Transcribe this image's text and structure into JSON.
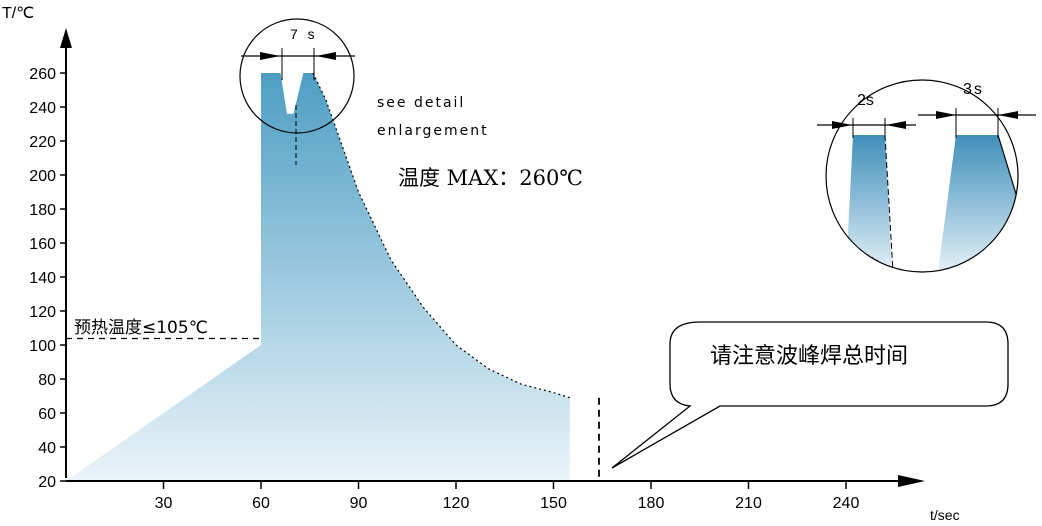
{
  "chart_data": {
    "type": "area",
    "ylabel": "T/℃",
    "xlabel": "t/sec",
    "xlim": [
      0,
      270
    ],
    "ylim": [
      20,
      280
    ],
    "xticks": [
      30,
      60,
      90,
      120,
      150,
      180,
      210,
      240
    ],
    "yticks": [
      20,
      40,
      60,
      80,
      100,
      120,
      140,
      160,
      180,
      200,
      220,
      240,
      260
    ],
    "profile": {
      "x": [
        0,
        60,
        60,
        66,
        68,
        70,
        73,
        76,
        80,
        90,
        100,
        110,
        120,
        130,
        140,
        150,
        155,
        155
      ],
      "y": [
        20,
        100,
        260,
        260,
        236,
        236,
        260,
        260,
        244,
        190,
        150,
        122,
        100,
        86,
        77,
        72,
        69,
        20
      ]
    },
    "peak_window_label": "7 s",
    "detail_windows": [
      {
        "label": "2s"
      },
      {
        "label": "3s"
      }
    ],
    "annotations": {
      "see_detail": "see detail",
      "enlargement": "enlargement",
      "max_temp": "温度 MAX：260℃",
      "preheat": "预热温度≤105℃",
      "preheat_level": 105,
      "callout": "请注意波峰焊总时间"
    },
    "colors": {
      "fill_top": "#4e9ec4",
      "fill_bottom": "#eaf4f9",
      "axis": "#000000",
      "dash": "#000000"
    },
    "grid": false
  }
}
